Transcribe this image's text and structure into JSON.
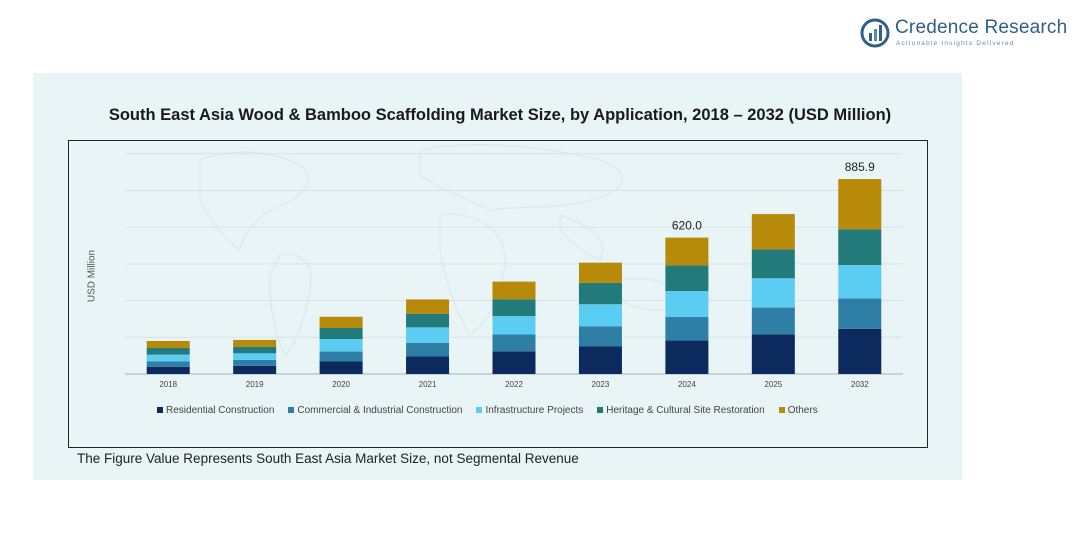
{
  "brand": {
    "name": "Credence Research",
    "tagline": "Actionable Insights Delivered"
  },
  "footnote": "The Figure Value Represents South East Asia Market Size, not Segmental Revenue",
  "chart_data": {
    "type": "bar",
    "stacked": true,
    "title": "South East Asia Wood & Bamboo Scaffolding Market Size, by Application, 2018 – 2032 (USD Million)",
    "xlabel": "",
    "ylabel": "USD Million",
    "ylim": [
      0,
      1000
    ],
    "grid": true,
    "legend_position": "bottom",
    "categories": [
      "2018",
      "2019",
      "2020",
      "2021",
      "2022",
      "2023",
      "2024",
      "2025",
      "2032"
    ],
    "series": [
      {
        "name": "Residential Construction",
        "color": "#0d2a5e",
        "values": [
          33,
          37,
          57,
          80,
          103,
          125,
          152,
          180,
          205
        ]
      },
      {
        "name": "Commercial & Industrial Construction",
        "color": "#2f7ea6",
        "values": [
          25,
          27,
          45,
          62,
          77,
          92,
          107,
          122,
          138
        ]
      },
      {
        "name": "Infrastructure Projects",
        "color": "#5ccdf2",
        "values": [
          30,
          30,
          57,
          70,
          83,
          100,
          118,
          133,
          152
        ]
      },
      {
        "name": "Heritage & Cultural Site Restoration",
        "color": "#237a7a",
        "values": [
          30,
          30,
          50,
          62,
          77,
          97,
          117,
          132,
          163
        ]
      },
      {
        "name": "Others",
        "color": "#b88a0a",
        "values": [
          32,
          31,
          51,
          65,
          80,
          92,
          126,
          160,
          228
        ]
      }
    ],
    "data_labels": [
      {
        "category": "2024",
        "text": "620.0"
      },
      {
        "category": "2032",
        "text": "885.9"
      }
    ]
  }
}
